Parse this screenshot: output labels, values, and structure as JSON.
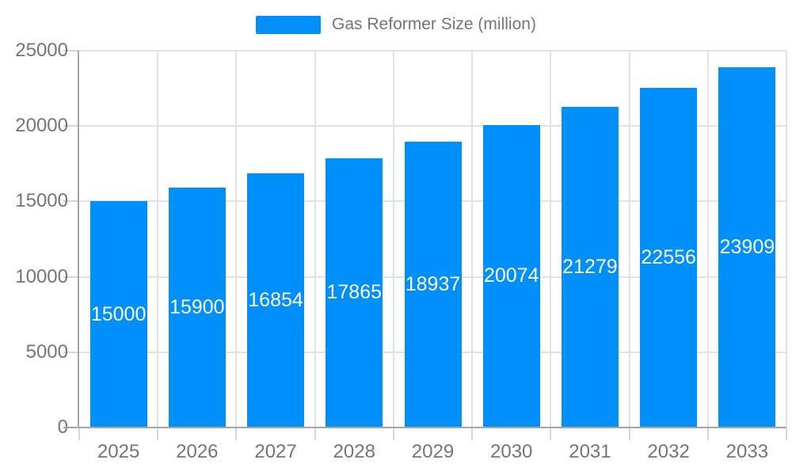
{
  "legend": {
    "label": "Gas Reformer Size (million)"
  },
  "colors": {
    "bar": "#008FFB",
    "bar_label": "#ffffff",
    "axis_label": "#757575",
    "grid_line": "#e2e2e2",
    "tick": "#d6d6d6",
    "axis_line": "#a6a6a6",
    "background": "#ffffff"
  },
  "chart_data": {
    "type": "bar",
    "title": "Gas Reformer Size (million)",
    "categories": [
      "2025",
      "2026",
      "2027",
      "2028",
      "2029",
      "2030",
      "2031",
      "2032",
      "2033"
    ],
    "series": [
      {
        "name": "Gas Reformer Size (million)",
        "values": [
          15000,
          15900,
          16854,
          17865,
          18937,
          20074,
          21279,
          22556,
          23909
        ]
      }
    ],
    "bar_labels": [
      "15000",
      "15900",
      "16854",
      "17865",
      "18937",
      "20074",
      "21279",
      "22556",
      "23909"
    ],
    "xlabel": "",
    "ylabel": "",
    "ylim": [
      0,
      25000
    ],
    "yticks": [
      0,
      5000,
      10000,
      15000,
      20000,
      25000
    ],
    "grid": true,
    "legend_position": "top",
    "bar_label_position": "center",
    "bar_label_color": "#ffffff"
  }
}
